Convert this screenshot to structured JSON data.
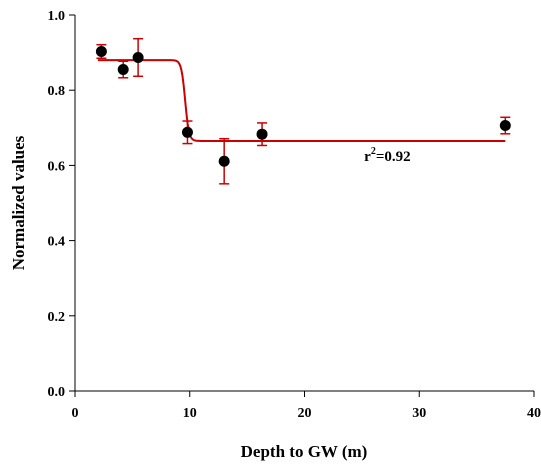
{
  "chart_data": {
    "type": "scatter",
    "title": "",
    "xlabel": "Depth to GW (m)",
    "ylabel": "Normalized values",
    "xlim": [
      0,
      40
    ],
    "ylim": [
      0.0,
      1.0
    ],
    "xticks": [
      0,
      10,
      20,
      30,
      40
    ],
    "yticks": [
      0.0,
      0.2,
      0.4,
      0.6,
      0.8,
      1.0
    ],
    "xtick_labels": [
      "0",
      "10",
      "20",
      "30",
      "40"
    ],
    "ytick_labels": [
      "0.0",
      "0.2",
      "0.4",
      "0.6",
      "0.8",
      "1.0"
    ],
    "grid": false,
    "legend": "none",
    "series": [
      {
        "x": [
          2.3,
          4.2,
          5.5,
          9.8,
          13.0,
          16.3,
          37.5
        ],
        "y": [
          0.903,
          0.855,
          0.887,
          0.688,
          0.611,
          0.683,
          0.706
        ],
        "error": [
          0.018,
          0.022,
          0.05,
          0.03,
          0.06,
          0.03,
          0.022
        ],
        "marker_color": "#000000",
        "error_color": "#cc0000"
      }
    ],
    "fit_line": {
      "type": "sigmoid",
      "upper": 0.88,
      "lower": 0.665,
      "midpoint": 9.6,
      "x_range": [
        2.0,
        37.5
      ],
      "color": "#cc0000"
    },
    "annotation": {
      "base": "r",
      "superscript": "2",
      "rest": "=0.92",
      "at_x": 25.2,
      "at_y": 0.625
    }
  }
}
